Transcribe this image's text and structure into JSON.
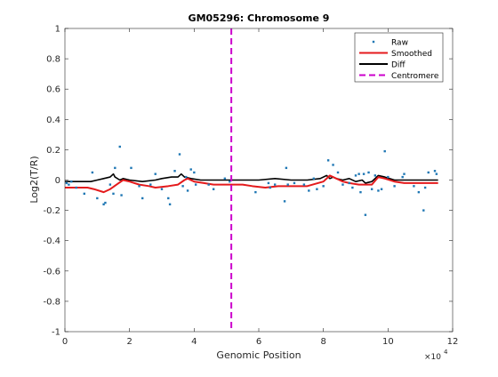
{
  "chart_data": {
    "type": "scatter",
    "title": "GM05296: Chromosome 9",
    "xlabel": "Genomic Position",
    "ylabel": "Log2(T/R)",
    "x_multiplier_label": "×10",
    "x_multiplier_exponent": "4",
    "xlim": [
      0,
      12
    ],
    "ylim": [
      -1,
      1
    ],
    "xticks": [
      0,
      2,
      4,
      6,
      8,
      10,
      12
    ],
    "yticks": [
      -1,
      -0.8,
      -0.6,
      -0.4,
      -0.2,
      0,
      0.2,
      0.4,
      0.6,
      0.8,
      1
    ],
    "xtick_labels": [
      "0",
      "2",
      "4",
      "6",
      "8",
      "10",
      "12"
    ],
    "ytick_labels": [
      "-1",
      "-0.8",
      "-0.6",
      "-0.4",
      "-0.2",
      "0",
      "0.2",
      "0.4",
      "0.6",
      "0.8",
      "1"
    ],
    "grid": false,
    "legend_position": "top-right",
    "colors": {
      "raw": "#1f77b4",
      "smoothed": "#e41a1c",
      "diff": "#000000",
      "centromere": "#cc00cc"
    },
    "legend": [
      {
        "key": "raw",
        "label": "Raw",
        "style": "marker"
      },
      {
        "key": "smoothed",
        "label": "Smoothed",
        "style": "line"
      },
      {
        "key": "diff",
        "label": "Diff",
        "style": "line"
      },
      {
        "key": "centromere",
        "label": "Centromere",
        "style": "dash"
      }
    ],
    "centromere_x": 5.15,
    "raw": [
      [
        0.05,
        -0.02
      ],
      [
        0.12,
        -0.03
      ],
      [
        0.2,
        -0.01
      ],
      [
        0.35,
        -0.05
      ],
      [
        0.6,
        -0.09
      ],
      [
        0.85,
        0.05
      ],
      [
        1.0,
        -0.12
      ],
      [
        1.2,
        -0.16
      ],
      [
        1.25,
        -0.15
      ],
      [
        1.4,
        -0.03
      ],
      [
        1.5,
        -0.09
      ],
      [
        1.55,
        0.08
      ],
      [
        1.7,
        0.22
      ],
      [
        1.75,
        -0.1
      ],
      [
        2.05,
        0.08
      ],
      [
        2.3,
        -0.04
      ],
      [
        2.4,
        -0.12
      ],
      [
        2.65,
        -0.03
      ],
      [
        2.8,
        0.04
      ],
      [
        3.0,
        -0.06
      ],
      [
        3.2,
        -0.12
      ],
      [
        3.25,
        -0.16
      ],
      [
        3.4,
        0.06
      ],
      [
        3.55,
        0.17
      ],
      [
        3.65,
        -0.04
      ],
      [
        3.75,
        0.02
      ],
      [
        3.8,
        -0.07
      ],
      [
        3.9,
        0.07
      ],
      [
        4.0,
        0.05
      ],
      [
        4.05,
        -0.03
      ],
      [
        4.45,
        -0.03
      ],
      [
        4.6,
        -0.06
      ],
      [
        4.95,
        0.01
      ],
      [
        5.1,
        -0.01
      ],
      [
        5.9,
        -0.08
      ],
      [
        6.3,
        -0.02
      ],
      [
        6.35,
        -0.05
      ],
      [
        6.5,
        -0.03
      ],
      [
        6.8,
        -0.14
      ],
      [
        6.85,
        0.08
      ],
      [
        6.9,
        -0.03
      ],
      [
        7.1,
        -0.02
      ],
      [
        7.4,
        -0.03
      ],
      [
        7.55,
        -0.07
      ],
      [
        7.7,
        0.01
      ],
      [
        7.8,
        -0.06
      ],
      [
        8.0,
        -0.04
      ],
      [
        8.15,
        0.13
      ],
      [
        8.3,
        0.1
      ],
      [
        8.45,
        0.05
      ],
      [
        8.6,
        -0.03
      ],
      [
        8.8,
        -0.02
      ],
      [
        8.9,
        -0.05
      ],
      [
        9.0,
        0.03
      ],
      [
        9.1,
        0.04
      ],
      [
        9.15,
        -0.08
      ],
      [
        9.25,
        0.04
      ],
      [
        9.3,
        -0.23
      ],
      [
        9.4,
        0.05
      ],
      [
        9.5,
        -0.06
      ],
      [
        9.6,
        0.03
      ],
      [
        9.7,
        -0.07
      ],
      [
        9.8,
        -0.06
      ],
      [
        9.9,
        0.19
      ],
      [
        10.0,
        0.02
      ],
      [
        10.2,
        -0.04
      ],
      [
        10.45,
        0.02
      ],
      [
        10.5,
        0.04
      ],
      [
        10.8,
        -0.04
      ],
      [
        10.95,
        -0.08
      ],
      [
        11.1,
        -0.2
      ],
      [
        11.15,
        -0.05
      ],
      [
        11.25,
        0.05
      ],
      [
        11.45,
        0.06
      ],
      [
        11.5,
        0.04
      ]
    ],
    "smoothed": [
      [
        0.0,
        -0.05
      ],
      [
        0.5,
        -0.05
      ],
      [
        0.7,
        -0.05
      ],
      [
        0.9,
        -0.06
      ],
      [
        1.2,
        -0.08
      ],
      [
        1.4,
        -0.06
      ],
      [
        1.6,
        -0.03
      ],
      [
        1.8,
        0.0
      ],
      [
        2.0,
        -0.01
      ],
      [
        2.3,
        -0.03
      ],
      [
        2.6,
        -0.04
      ],
      [
        2.8,
        -0.05
      ],
      [
        3.2,
        -0.04
      ],
      [
        3.5,
        -0.03
      ],
      [
        3.7,
        0.0
      ],
      [
        3.8,
        0.01
      ],
      [
        4.0,
        -0.01
      ],
      [
        4.3,
        -0.02
      ],
      [
        4.6,
        -0.03
      ],
      [
        5.0,
        -0.03
      ],
      [
        5.5,
        -0.03
      ],
      [
        5.8,
        -0.04
      ],
      [
        6.2,
        -0.05
      ],
      [
        6.6,
        -0.04
      ],
      [
        7.0,
        -0.04
      ],
      [
        7.5,
        -0.04
      ],
      [
        8.0,
        -0.01
      ],
      [
        8.2,
        0.03
      ],
      [
        8.4,
        0.01
      ],
      [
        8.6,
        -0.01
      ],
      [
        8.8,
        -0.02
      ],
      [
        9.1,
        -0.03
      ],
      [
        9.3,
        -0.03
      ],
      [
        9.5,
        -0.03
      ],
      [
        9.7,
        0.02
      ],
      [
        9.9,
        0.01
      ],
      [
        10.2,
        -0.01
      ],
      [
        10.5,
        -0.02
      ],
      [
        10.8,
        -0.02
      ],
      [
        11.2,
        -0.02
      ],
      [
        11.55,
        -0.02
      ]
    ],
    "diff": [
      [
        0.0,
        -0.01
      ],
      [
        0.5,
        -0.01
      ],
      [
        0.8,
        -0.01
      ],
      [
        1.0,
        0.0
      ],
      [
        1.2,
        0.01
      ],
      [
        1.4,
        0.02
      ],
      [
        1.5,
        0.04
      ],
      [
        1.55,
        0.02
      ],
      [
        1.7,
        0.0
      ],
      [
        1.8,
        0.01
      ],
      [
        2.0,
        0.0
      ],
      [
        2.4,
        -0.01
      ],
      [
        2.8,
        0.0
      ],
      [
        3.0,
        0.01
      ],
      [
        3.3,
        0.02
      ],
      [
        3.5,
        0.02
      ],
      [
        3.6,
        0.04
      ],
      [
        3.7,
        0.02
      ],
      [
        3.9,
        0.01
      ],
      [
        4.2,
        0.0
      ],
      [
        4.6,
        0.0
      ],
      [
        5.0,
        0.0
      ],
      [
        5.5,
        0.0
      ],
      [
        6.0,
        0.0
      ],
      [
        6.5,
        0.01
      ],
      [
        7.0,
        0.0
      ],
      [
        7.5,
        0.0
      ],
      [
        7.9,
        0.01
      ],
      [
        8.1,
        0.03
      ],
      [
        8.2,
        0.01
      ],
      [
        8.3,
        0.02
      ],
      [
        8.4,
        0.01
      ],
      [
        8.6,
        0.0
      ],
      [
        8.8,
        0.01
      ],
      [
        9.0,
        -0.01
      ],
      [
        9.2,
        0.0
      ],
      [
        9.3,
        -0.02
      ],
      [
        9.5,
        -0.01
      ],
      [
        9.7,
        0.03
      ],
      [
        9.9,
        0.02
      ],
      [
        10.2,
        0.0
      ],
      [
        10.6,
        0.0
      ],
      [
        11.0,
        0.0
      ],
      [
        11.55,
        0.0
      ]
    ]
  }
}
